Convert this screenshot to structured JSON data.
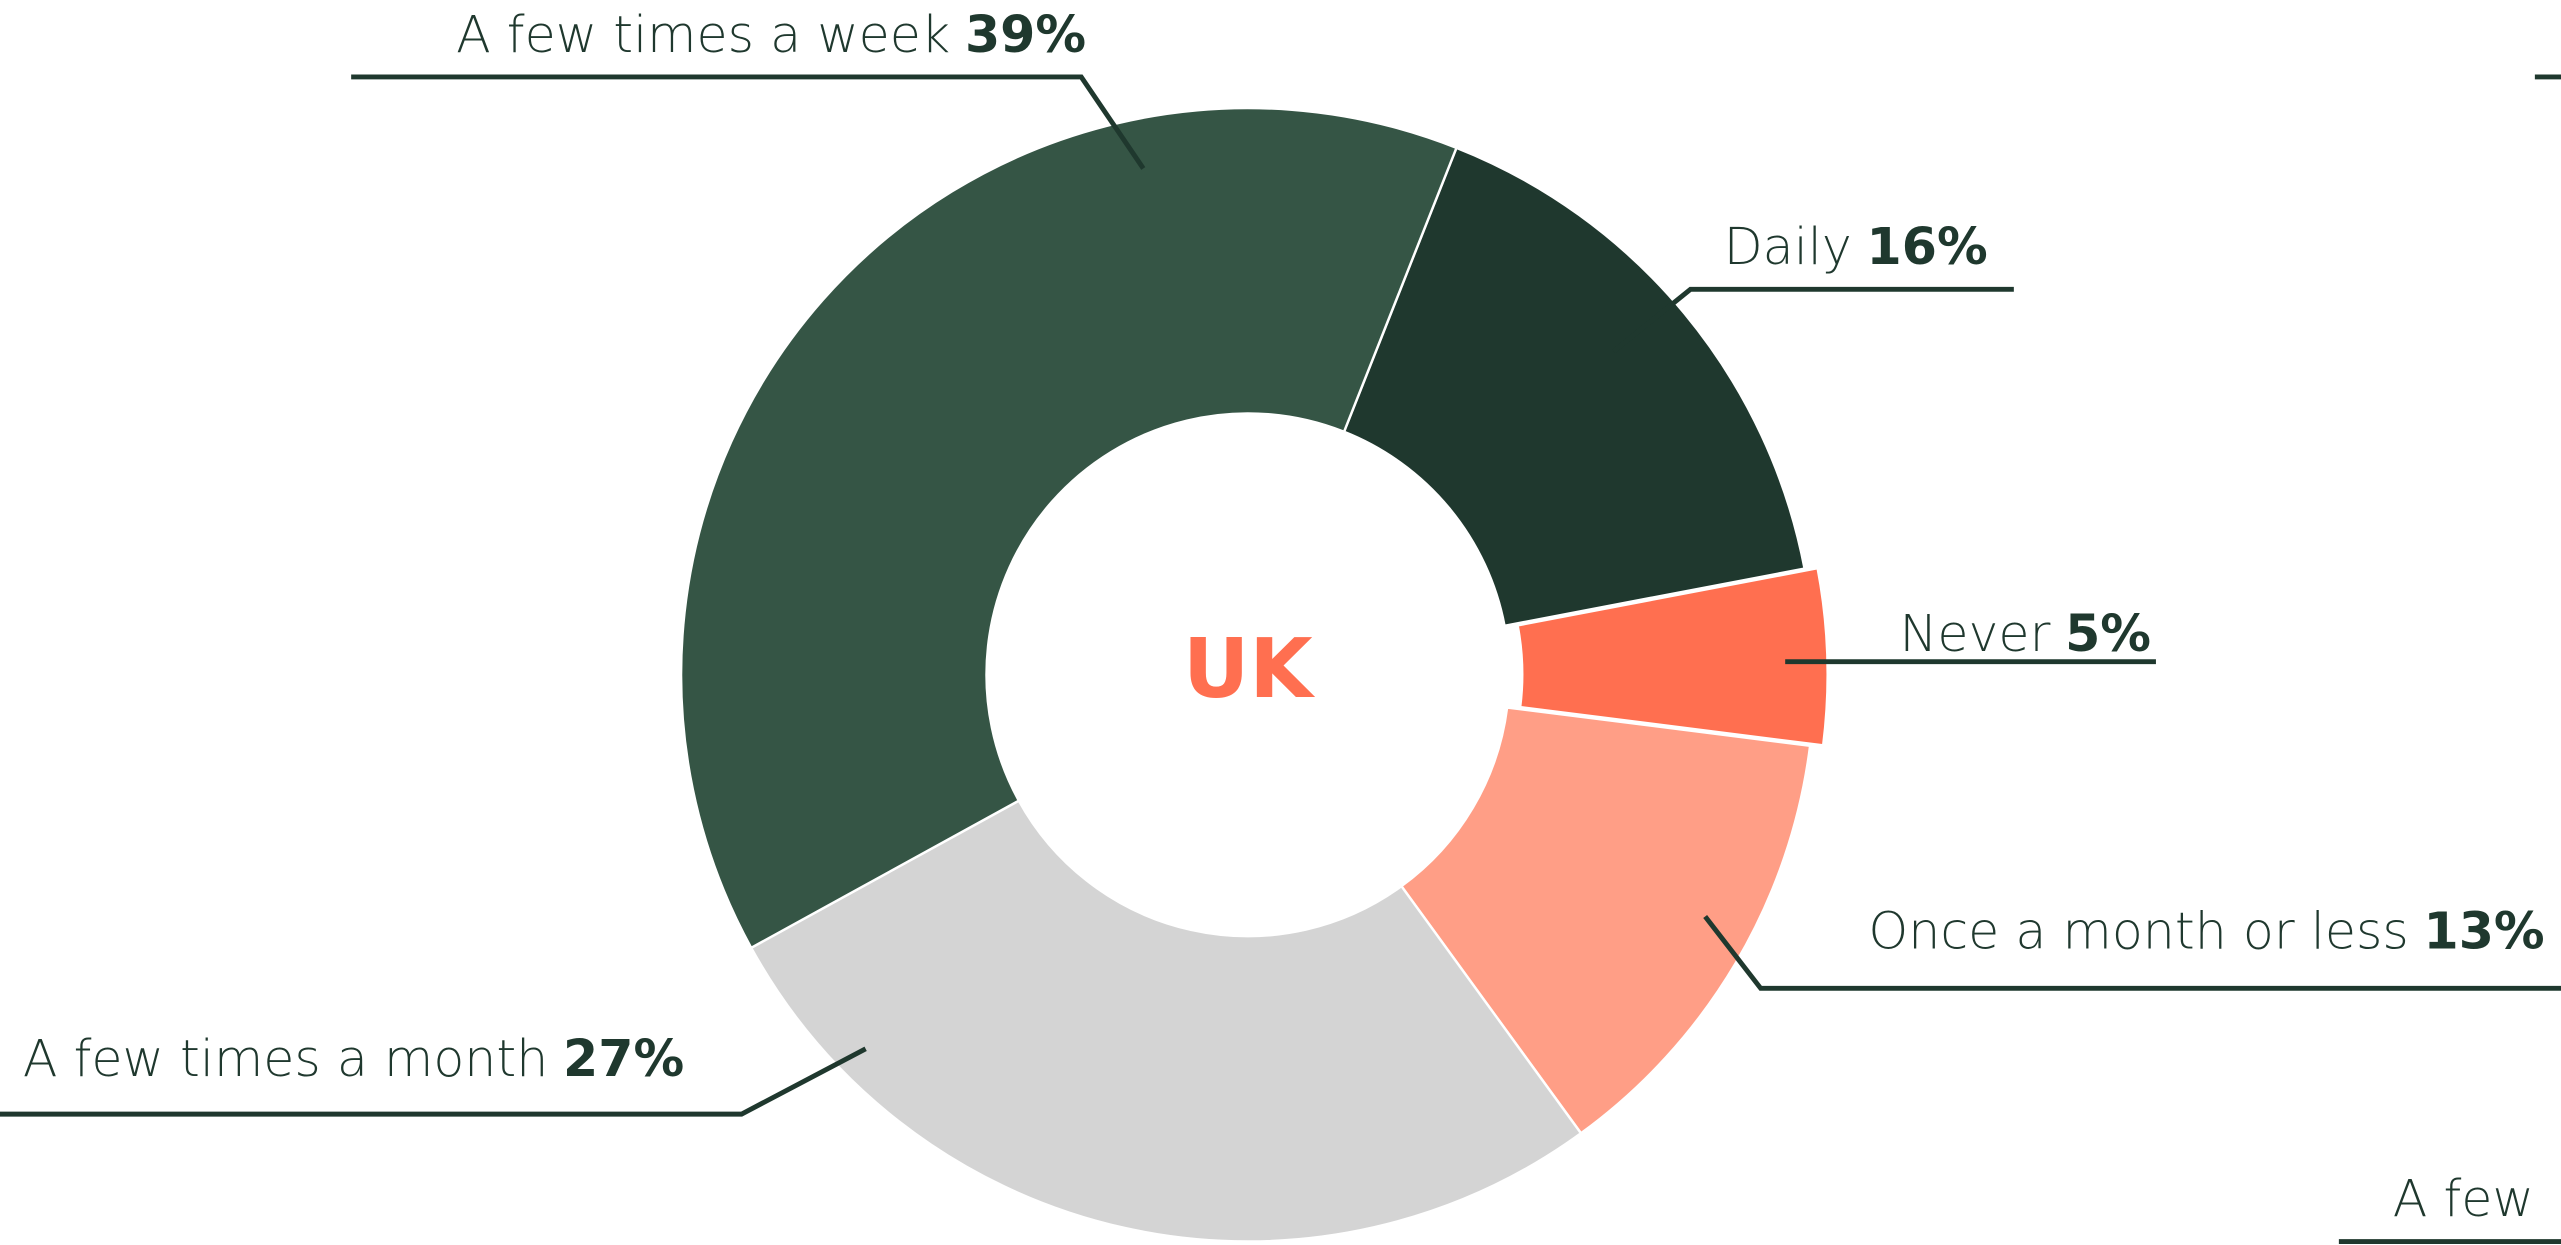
{
  "chart_data": {
    "type": "donut",
    "center_label": "UK",
    "categories": [
      "Daily",
      "Never",
      "Once a month or less",
      "A few times a month",
      "A few times a week"
    ],
    "values": [
      16,
      5,
      13,
      27,
      39
    ],
    "value_labels": [
      "16%",
      "5%",
      "13%",
      "27%",
      "39%"
    ],
    "colors": [
      "#1f382e",
      "#ff6f50",
      "#ff9e86",
      "#d4d4d4",
      "#355545"
    ],
    "exploded": [
      false,
      true,
      false,
      false,
      false
    ]
  },
  "cropped_neighbor_label": "A few"
}
